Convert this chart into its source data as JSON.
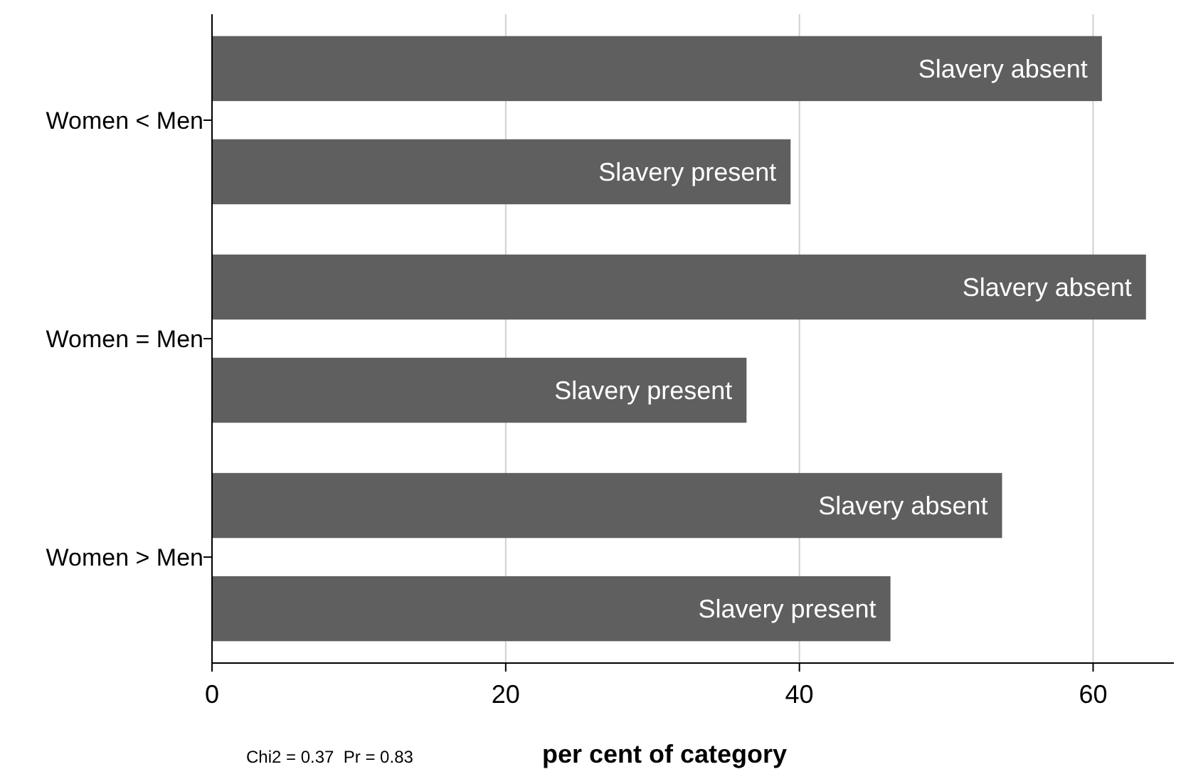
{
  "chart_data": {
    "type": "bar",
    "orientation": "horizontal",
    "categories": [
      "Women < Men",
      "Women = Men",
      "Women > Men"
    ],
    "series": [
      {
        "name": "Slavery absent",
        "color": "#5f5f60",
        "values": [
          60.6,
          63.6,
          53.8
        ]
      },
      {
        "name": "Slavery present",
        "color": "#5f5f60",
        "values": [
          39.4,
          36.4,
          46.2
        ]
      }
    ],
    "xlim": [
      0,
      65.5
    ],
    "xticks": [
      0,
      20,
      40,
      60
    ],
    "xlabel": "per cent of category",
    "grid": "x",
    "annotations": [
      "Chi2 = 0.37  Pr = 0.83"
    ]
  }
}
